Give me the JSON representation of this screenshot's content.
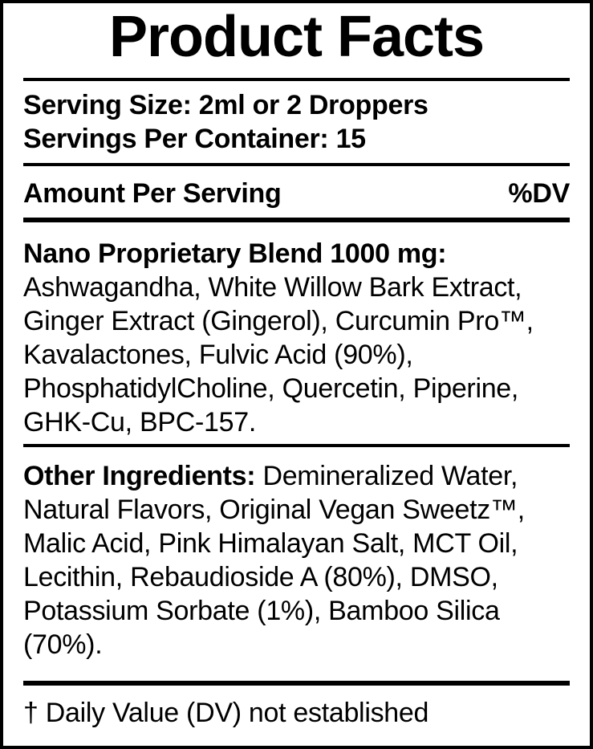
{
  "label": {
    "title": "Product Facts",
    "serving": {
      "size_line": "Serving Size: 2ml or 2 Droppers",
      "container_line": "Servings Per Container: 15"
    },
    "amount_header": {
      "left": "Amount Per Serving",
      "right": "%DV"
    },
    "blend": {
      "heading": "Nano Proprietary Blend 1000 mg:",
      "lines": [
        "Ashwagandha, White Willow Bark Extract,",
        "Ginger Extract (Gingerol), Curcumin Pro™,",
        "Kavalactones, Fulvic Acid (90%),",
        "PhosphatidylCholine, Quercetin, Piperine,",
        "GHK-Cu, BPC-157."
      ]
    },
    "other": {
      "lead": "Other Ingredients:",
      "first_line_rest": " Demineralized Water,",
      "lines": [
        "Natural Flavors, Original Vegan Sweetz™,",
        "Malic Acid, Pink Himalayan Salt, MCT Oil,",
        "Lecithin, Rebaudioside A (80%), DMSO,",
        "Potassium Sorbate (1%), Bamboo Silica",
        "(70%)."
      ]
    },
    "footnote": "† Daily Value (DV) not established",
    "colors": {
      "ink": "#000000",
      "background": "#ffffff"
    }
  }
}
